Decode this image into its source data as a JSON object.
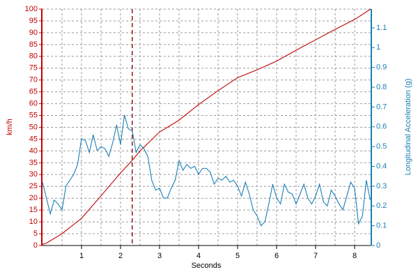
{
  "chart_data": {
    "type": "line",
    "xlabel": "Seconds",
    "ylabel": "km/h",
    "y2label": "Longitudinal Acceleration (g)",
    "xlim": [
      0,
      8.41
    ],
    "xticks": [
      1,
      2,
      3,
      4,
      5,
      6,
      7,
      8
    ],
    "xminor": [
      0.5,
      1.5,
      2.5,
      3.5,
      4.5,
      5.5,
      6.5,
      7.5
    ],
    "ylim": [
      0,
      100
    ],
    "yticks": [
      0,
      5,
      10,
      15,
      20,
      25,
      30,
      35,
      40,
      45,
      50,
      55,
      60,
      65,
      70,
      75,
      80,
      85,
      90,
      95,
      100
    ],
    "y2lim": [
      0,
      1.195
    ],
    "y2ticks": [
      0,
      0.1,
      0.2,
      0.3,
      0.4,
      0.5,
      0.6,
      0.7,
      0.8,
      0.9,
      1,
      1.1
    ],
    "grid": true,
    "marker_x": 2.3,
    "marker_color": "#8b1a1a",
    "y_color": "#c00000",
    "y2_color": "#1a7fb5",
    "series": [
      {
        "color": "#c00000",
        "axis": "y",
        "x": [
          0,
          0.1,
          0.5,
          1,
          1.5,
          2,
          2.3,
          2.5,
          3,
          3.5,
          4,
          4.5,
          5,
          5.5,
          6,
          6.5,
          7,
          7.5,
          8,
          8.41
        ],
        "values": [
          0.5,
          1,
          5,
          11.5,
          21,
          30.7,
          36,
          40,
          48,
          53,
          59.6,
          65.5,
          71,
          74.3,
          78,
          82.6,
          87,
          91.4,
          95.6,
          100
        ]
      },
      {
        "color": "#1a7fb5",
        "axis": "y2",
        "x": [
          0,
          0.1,
          0.2,
          0.3,
          0.4,
          0.5,
          0.6,
          0.7,
          0.8,
          0.9,
          1,
          1.1,
          1.2,
          1.3,
          1.4,
          1.5,
          1.6,
          1.7,
          1.8,
          1.9,
          2,
          2.1,
          2.2,
          2.3,
          2.4,
          2.5,
          2.6,
          2.7,
          2.8,
          2.9,
          3,
          3.1,
          3.2,
          3.3,
          3.4,
          3.5,
          3.6,
          3.7,
          3.8,
          3.9,
          4,
          4.1,
          4.2,
          4.3,
          4.4,
          4.5,
          4.6,
          4.7,
          4.8,
          4.9,
          5,
          5.1,
          5.2,
          5.3,
          5.4,
          5.5,
          5.6,
          5.7,
          5.8,
          5.9,
          6,
          6.1,
          6.2,
          6.3,
          6.4,
          6.5,
          6.6,
          6.7,
          6.8,
          6.9,
          7,
          7.1,
          7.2,
          7.3,
          7.4,
          7.5,
          7.6,
          7.7,
          7.8,
          7.9,
          8,
          8.1,
          8.2,
          8.3,
          8.4
        ],
        "values": [
          0.32,
          0.24,
          0.16,
          0.23,
          0.21,
          0.18,
          0.3,
          0.33,
          0.36,
          0.41,
          0.54,
          0.53,
          0.47,
          0.56,
          0.48,
          0.5,
          0.49,
          0.45,
          0.52,
          0.61,
          0.51,
          0.66,
          0.59,
          0.58,
          0.47,
          0.51,
          0.49,
          0.45,
          0.33,
          0.28,
          0.29,
          0.24,
          0.24,
          0.29,
          0.33,
          0.43,
          0.38,
          0.41,
          0.39,
          0.4,
          0.36,
          0.39,
          0.39,
          0.37,
          0.31,
          0.34,
          0.33,
          0.35,
          0.32,
          0.33,
          0.3,
          0.25,
          0.32,
          0.26,
          0.18,
          0.15,
          0.1,
          0.12,
          0.21,
          0.31,
          0.24,
          0.21,
          0.31,
          0.27,
          0.26,
          0.21,
          0.26,
          0.31,
          0.24,
          0.21,
          0.25,
          0.31,
          0.22,
          0.2,
          0.28,
          0.25,
          0.21,
          0.18,
          0.25,
          0.32,
          0.29,
          0.11,
          0.15,
          0.33,
          0.23
        ]
      }
    ]
  }
}
